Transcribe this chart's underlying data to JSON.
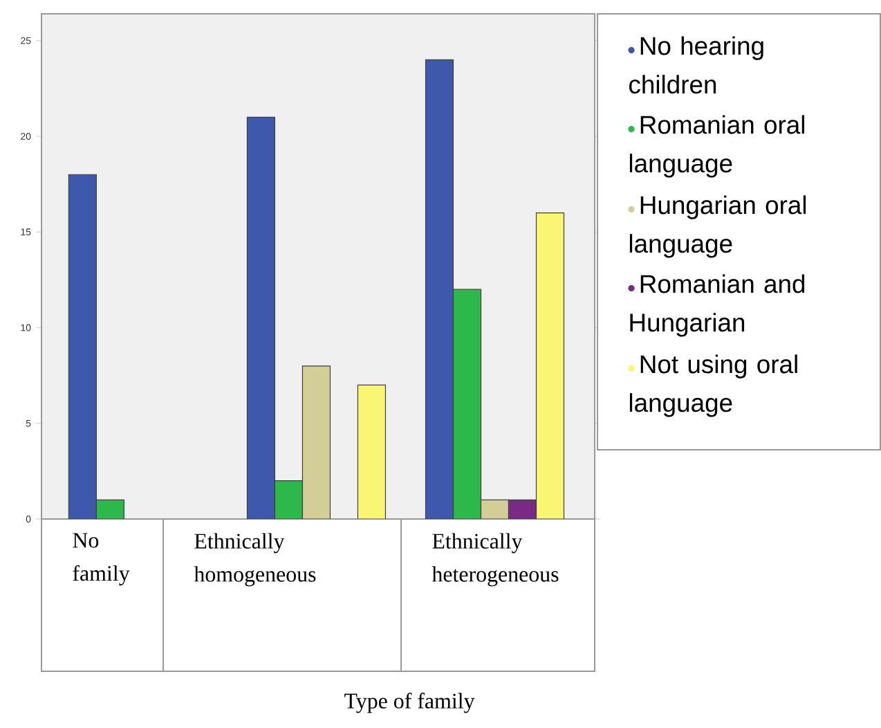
{
  "chart_data": {
    "type": "bar",
    "xlabel": "Type of family",
    "categories": [
      "No family",
      "Ethnically homogeneous",
      "Ethnically heterogeneous"
    ],
    "series": [
      {
        "name": "No hearing children",
        "color": "#3e58ac",
        "values": [
          18,
          21,
          24
        ]
      },
      {
        "name": "Romanian oral language",
        "color": "#2db84b",
        "values": [
          1,
          2,
          12
        ]
      },
      {
        "name": "Hungarian oral language",
        "color": "#d3ce97",
        "values": [
          null,
          8,
          1
        ]
      },
      {
        "name": "Romanian and Hungarian",
        "color": "#7a2a84",
        "values": [
          null,
          null,
          1
        ]
      },
      {
        "name": "Not using oral language",
        "color": "#faf673",
        "values": [
          null,
          7,
          16
        ]
      }
    ],
    "ylim": [
      0,
      26.4
    ],
    "yticks": [
      0,
      5,
      10,
      15,
      20,
      25
    ],
    "grid": false,
    "legend": "right"
  }
}
